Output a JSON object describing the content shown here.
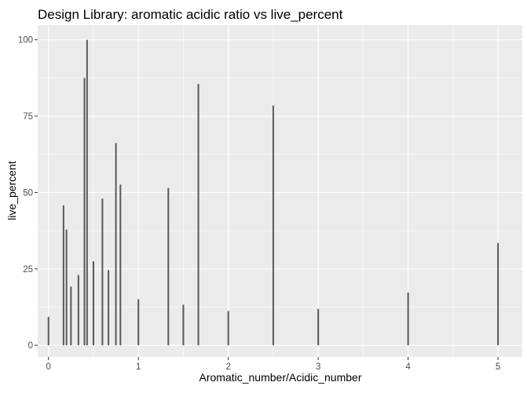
{
  "chart_data": {
    "type": "bar",
    "title": "Design Library: aromatic acidic ratio vs live_percent",
    "xlabel": "Aromatic_number/Acidic_number",
    "ylabel": "live_percent",
    "xlim": [
      -0.12,
      5.27
    ],
    "ylim": [
      -3.8,
      104.8
    ],
    "xticks": [
      0,
      1,
      2,
      3,
      4,
      5
    ],
    "yticks": [
      0,
      25,
      50,
      75,
      100
    ],
    "grid": true,
    "legend": "none",
    "colors": {
      "bar": "#595959",
      "panel": "#ebebeb",
      "grid": "#ffffff"
    },
    "points": [
      {
        "x": 0.0,
        "y": 9.3
      },
      {
        "x": 0.167,
        "y": 45.8
      },
      {
        "x": 0.2,
        "y": 37.9
      },
      {
        "x": 0.25,
        "y": 19.2
      },
      {
        "x": 0.333,
        "y": 23.0
      },
      {
        "x": 0.4,
        "y": 87.5
      },
      {
        "x": 0.429,
        "y": 100.0
      },
      {
        "x": 0.5,
        "y": 27.5
      },
      {
        "x": 0.6,
        "y": 48.0
      },
      {
        "x": 0.667,
        "y": 24.6
      },
      {
        "x": 0.75,
        "y": 66.2
      },
      {
        "x": 0.8,
        "y": 52.6
      },
      {
        "x": 1.0,
        "y": 15.1
      },
      {
        "x": 1.333,
        "y": 51.5
      },
      {
        "x": 1.5,
        "y": 13.3
      },
      {
        "x": 1.667,
        "y": 85.5
      },
      {
        "x": 2.0,
        "y": 11.2
      },
      {
        "x": 2.5,
        "y": 78.5
      },
      {
        "x": 3.0,
        "y": 11.9
      },
      {
        "x": 4.0,
        "y": 17.3
      },
      {
        "x": 5.0,
        "y": 33.5
      }
    ]
  }
}
